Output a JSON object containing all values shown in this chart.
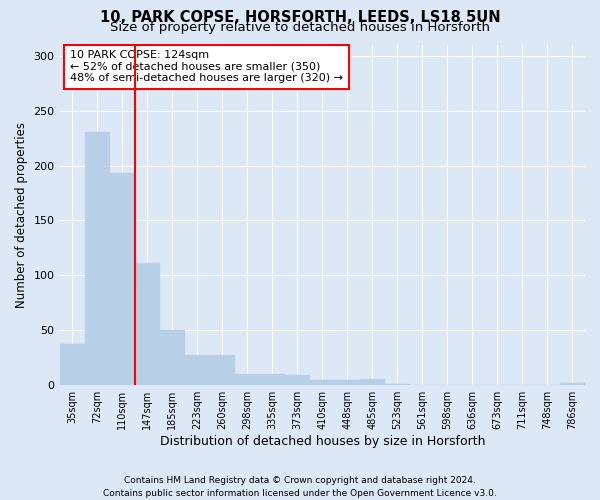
{
  "title": "10, PARK COPSE, HORSFORTH, LEEDS, LS18 5UN",
  "subtitle": "Size of property relative to detached houses in Horsforth",
  "xlabel": "Distribution of detached houses by size in Horsforth",
  "ylabel": "Number of detached properties",
  "categories": [
    "35sqm",
    "72sqm",
    "110sqm",
    "147sqm",
    "185sqm",
    "223sqm",
    "260sqm",
    "298sqm",
    "335sqm",
    "373sqm",
    "410sqm",
    "448sqm",
    "485sqm",
    "523sqm",
    "561sqm",
    "598sqm",
    "636sqm",
    "673sqm",
    "711sqm",
    "748sqm",
    "786sqm"
  ],
  "values": [
    37,
    231,
    193,
    111,
    50,
    27,
    27,
    10,
    10,
    9,
    4,
    4,
    5,
    1,
    0,
    0,
    0,
    0,
    0,
    0,
    2
  ],
  "bar_color": "#b8cfe8",
  "bar_edgecolor": "#b8cfe8",
  "vline_x": 2.5,
  "vline_color": "red",
  "annotation_line1": "10 PARK COPSE: 124sqm",
  "annotation_line2": "← 52% of detached houses are smaller (350)",
  "annotation_line3": "48% of semi-detached houses are larger (320) →",
  "ylim": [
    0,
    310
  ],
  "yticks": [
    0,
    50,
    100,
    150,
    200,
    250,
    300
  ],
  "footer_line1": "Contains HM Land Registry data © Crown copyright and database right 2024.",
  "footer_line2": "Contains public sector information licensed under the Open Government Licence v3.0.",
  "background_color": "#dce8f5",
  "plot_background": "#dce8f5",
  "grid_color": "white",
  "title_fontsize": 10.5,
  "subtitle_fontsize": 9.5,
  "ylabel_fontsize": 8.5,
  "xlabel_fontsize": 9,
  "annot_fontsize": 8,
  "tick_fontsize": 7,
  "footer_fontsize": 6.5
}
